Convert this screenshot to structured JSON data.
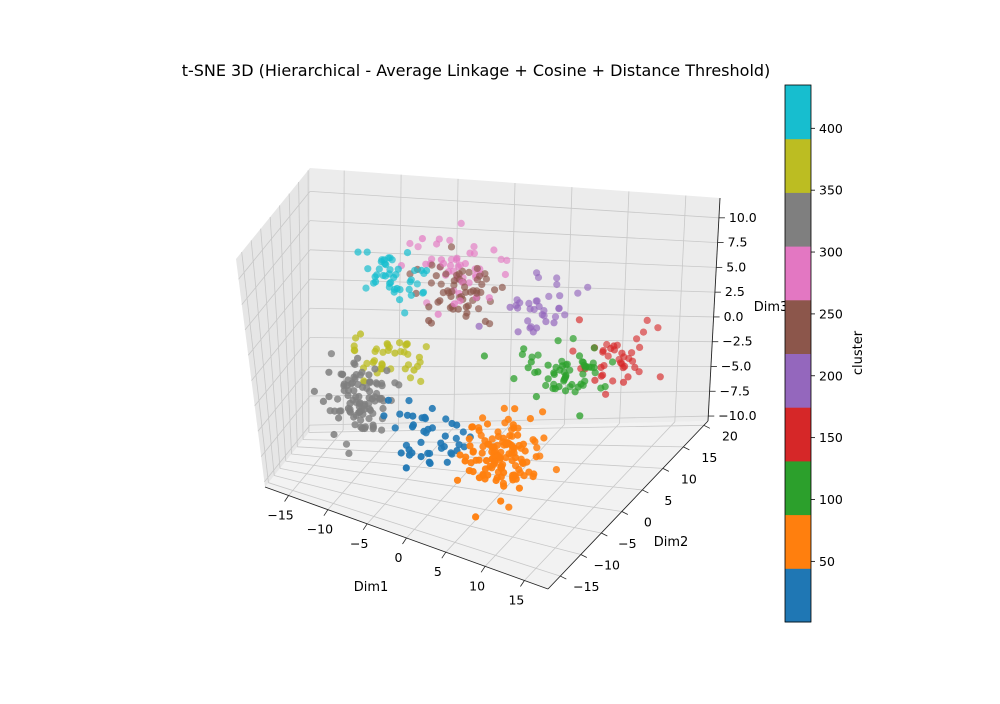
{
  "chart_data": {
    "type": "scatter",
    "projection": "3d",
    "title": "t-SNE 3D (Hierarchical - Average Linkage + Cosine + Distance Threshold)",
    "xlabel": "Dim1",
    "ylabel": "Dim2",
    "zlabel": "Dim3",
    "xlim": [
      -18,
      18
    ],
    "ylim": [
      -18,
      21
    ],
    "zlim": [
      -10.5,
      12
    ],
    "x_ticks": [
      -15,
      -10,
      -5,
      0,
      5,
      10,
      15
    ],
    "y_ticks": [
      -15,
      -10,
      -5,
      0,
      5,
      10,
      15,
      20
    ],
    "z_ticks": [
      -10.0,
      -7.5,
      -5.0,
      -2.5,
      0.0,
      2.5,
      5.0,
      7.5,
      10.0
    ],
    "grid": true,
    "colorbar": {
      "label": "cluster",
      "range": [
        1,
        435
      ],
      "ticks": [
        50,
        100,
        150,
        200,
        250,
        300,
        350,
        400
      ],
      "colors": [
        "#1f77b4",
        "#ff7f0e",
        "#2ca02c",
        "#d62728",
        "#9467bd",
        "#8c564b",
        "#e377c2",
        "#7f7f7f",
        "#bcbd22",
        "#17becf"
      ]
    },
    "clusters": [
      {
        "color": "#1f77b4",
        "cx": 0,
        "cy": -9,
        "cz": -3,
        "sx": 4,
        "sy": 3.5,
        "sz": 2.5,
        "n": 45
      },
      {
        "color": "#ff7f0e",
        "cx": 9,
        "cy": -10,
        "cz": -3,
        "sx": 3.5,
        "sy": 4,
        "sz": 2.5,
        "n": 130
      },
      {
        "color": "#2ca02c",
        "cx": 10,
        "cy": 5,
        "cz": 0,
        "sx": 3.5,
        "sy": 3.5,
        "sz": 2,
        "n": 60
      },
      {
        "color": "#d62728",
        "cx": 12,
        "cy": 12,
        "cz": -1,
        "sx": 3,
        "sy": 4,
        "sz": 3,
        "n": 40
      },
      {
        "color": "#9467bd",
        "cx": 5,
        "cy": 11,
        "cz": 4,
        "sx": 3,
        "sy": 3,
        "sz": 2,
        "n": 35
      },
      {
        "color": "#8c564b",
        "cx": -2,
        "cy": 10,
        "cz": 5,
        "sx": 3,
        "sy": 3,
        "sz": 2,
        "n": 60
      },
      {
        "color": "#e377c2",
        "cx": -3,
        "cy": 12,
        "cz": 6,
        "sx": 4,
        "sy": 4,
        "sz": 3,
        "n": 50
      },
      {
        "color": "#7f7f7f",
        "cx": -9,
        "cy": -3,
        "cz": -3,
        "sx": 3,
        "sy": 3,
        "sz": 3,
        "n": 100
      },
      {
        "color": "#bcbd22",
        "cx": -7,
        "cy": 2,
        "cz": 0,
        "sx": 3,
        "sy": 3,
        "sz": 2,
        "n": 40
      },
      {
        "color": "#17becf",
        "cx": -8,
        "cy": 8,
        "cz": 6,
        "sx": 3,
        "sy": 3,
        "sz": 2.5,
        "n": 45
      }
    ]
  }
}
